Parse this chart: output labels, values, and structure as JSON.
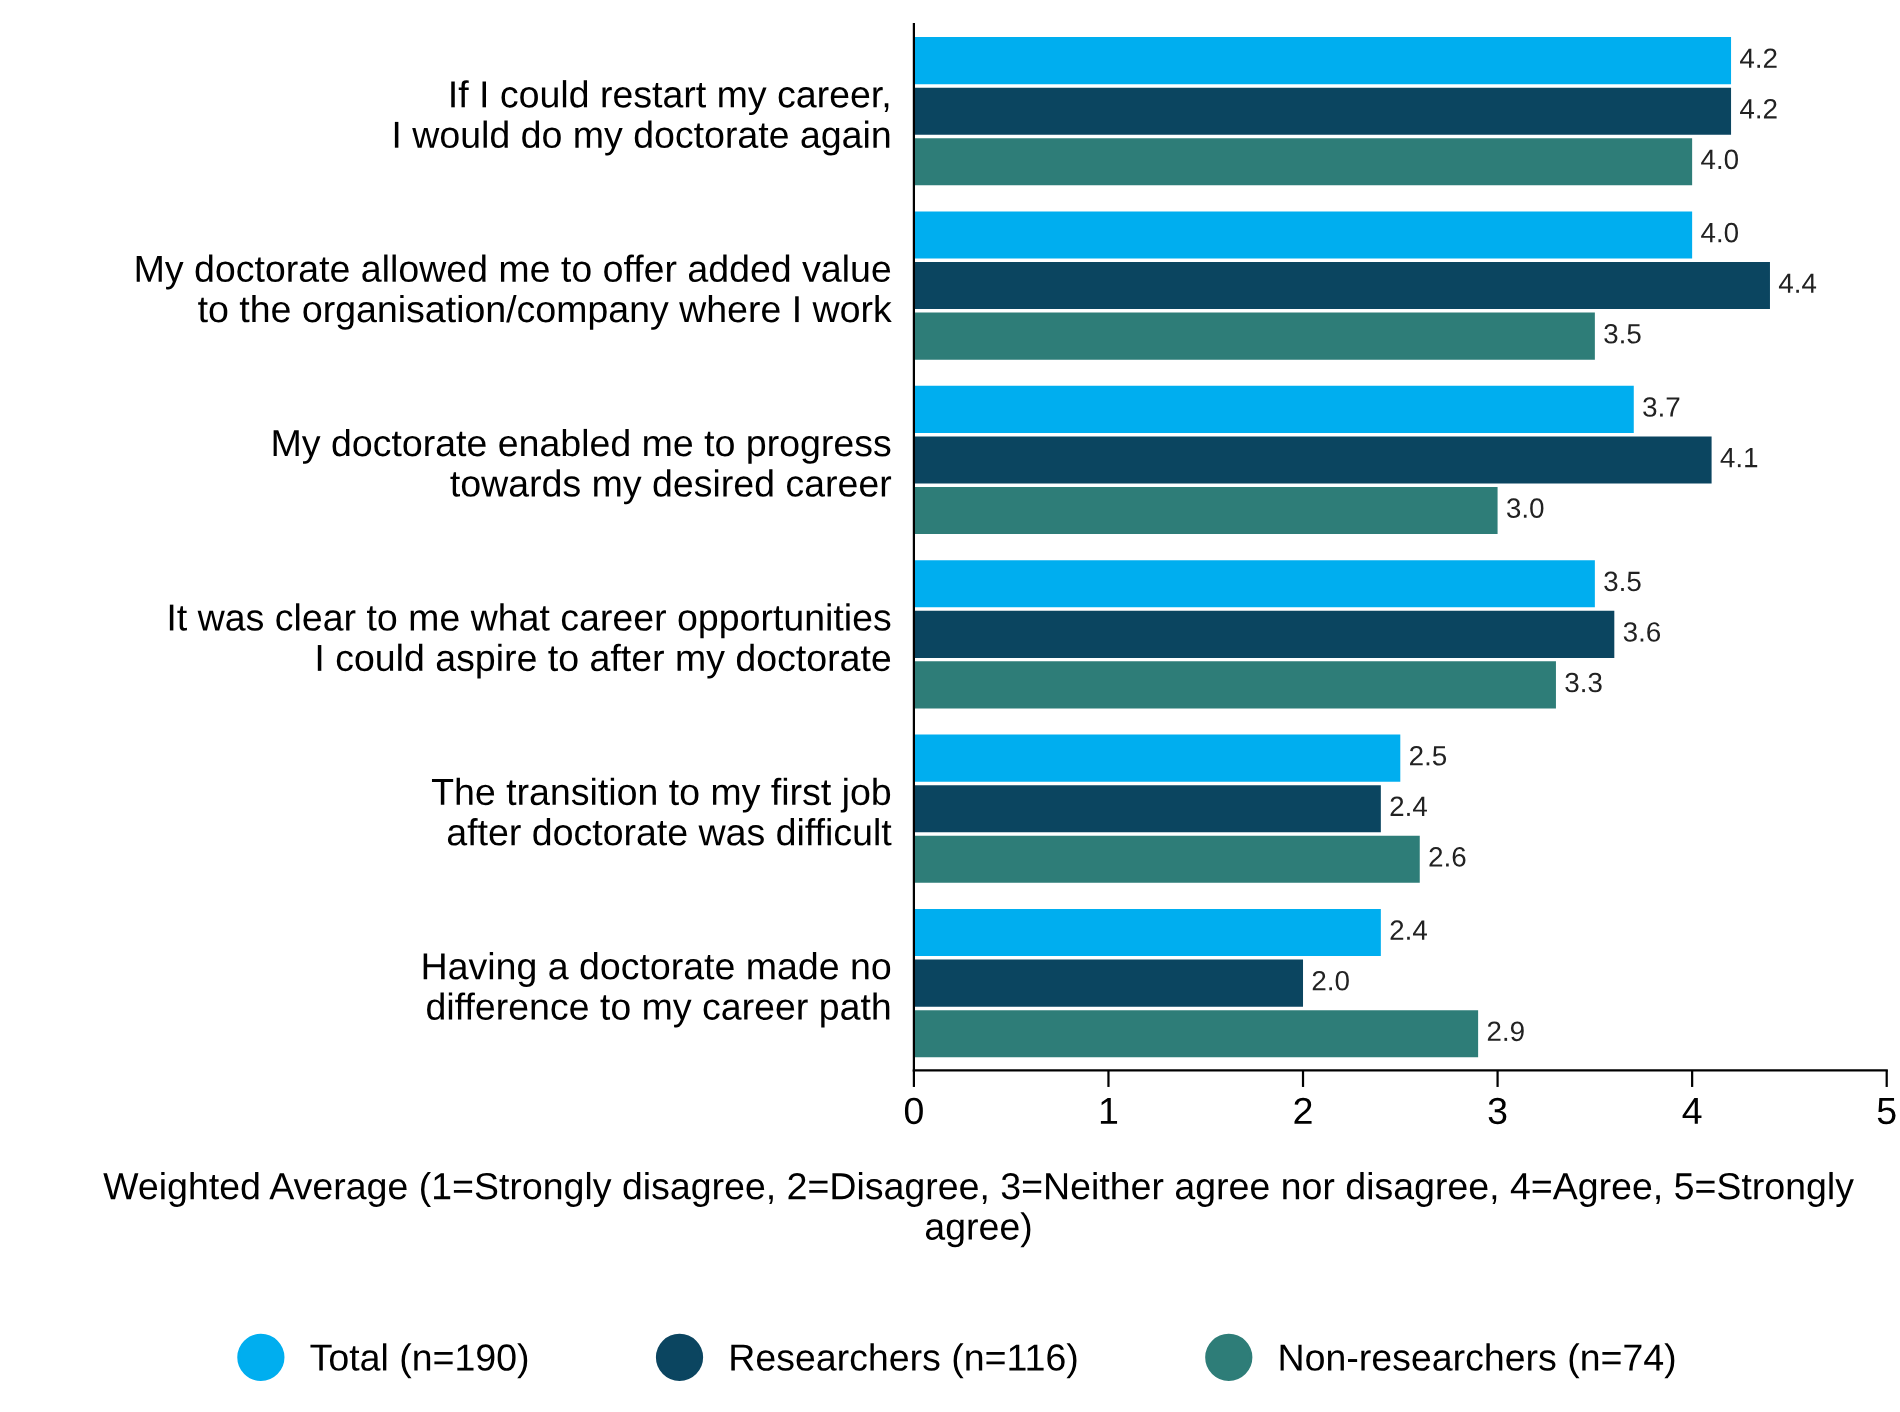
{
  "chart_data": {
    "type": "bar",
    "orientation": "horizontal",
    "categories": [
      "If I could restart my career,\nI would do my doctorate again",
      "My doctorate allowed me to offer added value\nto the organisation/company where I work",
      "My doctorate enabled me to progress\ntowards my desired career",
      "It was clear to me what career opportunities\nI could aspire to after my doctorate",
      "The transition to my first job\nafter doctorate was difficult",
      "Having a doctorate made no\ndifference to my career path"
    ],
    "series": [
      {
        "name": "Total (n=190)",
        "color": "#00aeef",
        "values": [
          4.2,
          4.0,
          3.7,
          3.5,
          2.5,
          2.4
        ],
        "value_labels": [
          "4.2",
          "4.0",
          "3.7",
          "3.5",
          "2.5",
          "2.4"
        ]
      },
      {
        "name": "Researchers (n=116)",
        "color": "#0b4560",
        "values": [
          4.2,
          4.4,
          4.1,
          3.6,
          2.4,
          2.0
        ],
        "value_labels": [
          "4.2",
          "4.4",
          "4.1",
          "3.6",
          "2.4",
          "2.0"
        ]
      },
      {
        "name": "Non-researchers (n=74)",
        "color": "#2e7d78",
        "values": [
          4.0,
          3.5,
          3.0,
          3.3,
          2.6,
          2.9
        ],
        "value_labels": [
          "4.0",
          "3.5",
          "3.0",
          "3.3",
          "2.6",
          "2.9"
        ]
      }
    ],
    "xlim": [
      0,
      5
    ],
    "xticks": [
      0,
      1,
      2,
      3,
      4,
      5
    ],
    "xlabel": "Weighted Average (1=Strongly disagree, 2=Disagree, 3=Neither agree nor disagree, 4=Agree, 5=Strongly agree)",
    "legend": "bottom",
    "grid": false
  }
}
